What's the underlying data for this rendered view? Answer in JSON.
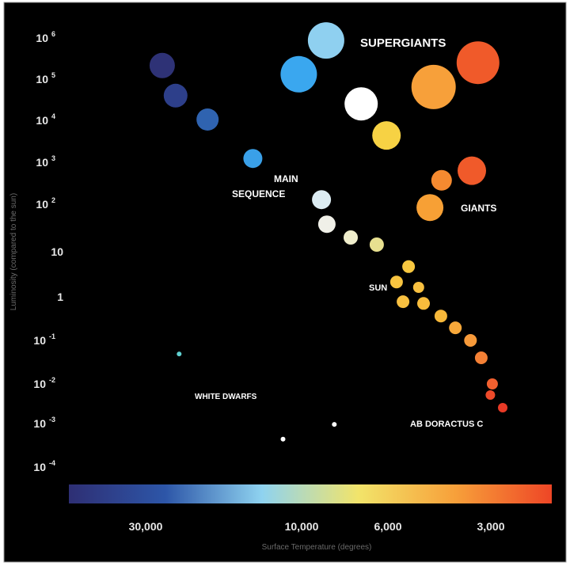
{
  "chart_data": {
    "type": "scatter",
    "title": "",
    "xlabel": "Surface Temperature (degrees)",
    "ylabel": "Luminosity (compared to the sun)",
    "x_scale": "log, reversed",
    "y_scale": "log",
    "x_ticks": [
      {
        "value": 30000,
        "label": "30,000"
      },
      {
        "value": 10000,
        "label": "10,000"
      },
      {
        "value": 6000,
        "label": "6,000"
      },
      {
        "value": 3000,
        "label": "3,000"
      }
    ],
    "y_ticks": [
      {
        "log": 6,
        "base": "10",
        "exp": "6"
      },
      {
        "log": 5,
        "base": "10",
        "exp": "5"
      },
      {
        "log": 4,
        "base": "10",
        "exp": "4"
      },
      {
        "log": 3,
        "base": "10",
        "exp": "3"
      },
      {
        "log": 2,
        "base": "10",
        "exp": "2"
      },
      {
        "log": 1,
        "base": "10",
        "exp": ""
      },
      {
        "log": 0,
        "base": "1",
        "exp": ""
      },
      {
        "log": -1,
        "base": "10",
        "exp": "-1"
      },
      {
        "log": -2,
        "base": "10",
        "exp": "-2"
      },
      {
        "log": -3,
        "base": "10",
        "exp": "-3"
      },
      {
        "log": -4,
        "base": "10",
        "exp": "-4"
      }
    ],
    "colorbar": [
      "#2e2f74",
      "#2d56a8",
      "#8fd3f0",
      "#f2e46a",
      "#f7a03a",
      "#ee4626"
    ],
    "annotations": {
      "supergiants": "SUPERGIANTS",
      "main_sequence_1": "MAIN",
      "main_sequence_2": "SEQUENCE",
      "giants": "GIANTS",
      "sun": "SUN",
      "white_dwarfs": "WHITE DWARFS",
      "ab_doradus": "AB DORACTUS C"
    },
    "stars": [
      {
        "temp": 26700,
        "logL": 5.33,
        "size": 8,
        "color": "#2e3276",
        "group": "main-sequence"
      },
      {
        "temp": 24300,
        "logL": 4.6,
        "size": 7.5,
        "color": "#2d3f8a",
        "group": "main-sequence"
      },
      {
        "temp": 19400,
        "logL": 4.02,
        "size": 7,
        "color": "#2f63b0",
        "group": "main-sequence"
      },
      {
        "temp": 14100,
        "logL": 3.09,
        "size": 6,
        "color": "#3aa0e8",
        "group": "main-sequence"
      },
      {
        "temp": 10200,
        "logL": 5.12,
        "size": 11.5,
        "color": "#3aa7ef",
        "group": "supergiant"
      },
      {
        "temp": 8650,
        "logL": 5.94,
        "size": 11.5,
        "color": "#8fd0f0",
        "group": "supergiant"
      },
      {
        "temp": 7030,
        "logL": 4.4,
        "size": 10.5,
        "color": "#ffffff",
        "group": "supergiant"
      },
      {
        "temp": 6050,
        "logL": 3.64,
        "size": 9,
        "color": "#f7d244",
        "group": "supergiant"
      },
      {
        "temp": 4410,
        "logL": 4.81,
        "size": 14,
        "color": "#f7a03a",
        "group": "supergiant"
      },
      {
        "temp": 3270,
        "logL": 5.4,
        "size": 13.5,
        "color": "#f05a2a",
        "group": "supergiant"
      },
      {
        "temp": 8890,
        "logL": 2.11,
        "size": 6,
        "color": "#dcecf2",
        "group": "main-sequence"
      },
      {
        "temp": 8610,
        "logL": 1.58,
        "size": 5.5,
        "color": "#f0f0e8",
        "group": "main-sequence"
      },
      {
        "temp": 7480,
        "logL": 1.3,
        "size": 4.5,
        "color": "#f0eecc",
        "group": "main-sequence"
      },
      {
        "temp": 6410,
        "logL": 1.15,
        "size": 4.5,
        "color": "#e8e090",
        "group": "main-sequence"
      },
      {
        "temp": 5220,
        "logL": 0.67,
        "size": 4,
        "color": "#f8c840",
        "group": "main-sequence"
      },
      {
        "temp": 5660,
        "logL": 0.33,
        "size": 4,
        "color": "#f8c440",
        "group": "sun"
      },
      {
        "temp": 4880,
        "logL": 0.21,
        "size": 3.5,
        "color": "#f8c040",
        "group": "main-sequence"
      },
      {
        "temp": 5420,
        "logL": -0.11,
        "size": 4,
        "color": "#f8c040",
        "group": "main-sequence"
      },
      {
        "temp": 4720,
        "logL": -0.15,
        "size": 4,
        "color": "#f8bc3c",
        "group": "main-sequence"
      },
      {
        "temp": 4200,
        "logL": -0.44,
        "size": 4,
        "color": "#f7b83a",
        "group": "main-sequence"
      },
      {
        "temp": 3810,
        "logL": -0.71,
        "size": 4,
        "color": "#f7a83a",
        "group": "main-sequence"
      },
      {
        "temp": 3440,
        "logL": -1.0,
        "size": 4,
        "color": "#f79a3a",
        "group": "main-sequence"
      },
      {
        "temp": 3200,
        "logL": -1.4,
        "size": 4,
        "color": "#f48035",
        "group": "main-sequence"
      },
      {
        "temp": 2970,
        "logL": -2.0,
        "size": 3.5,
        "color": "#f2602f",
        "group": "main-sequence"
      },
      {
        "temp": 3010,
        "logL": -2.28,
        "size": 3,
        "color": "#ee4a2a",
        "group": "main-sequence"
      },
      {
        "temp": 2770,
        "logL": -2.6,
        "size": 3,
        "color": "#e83a26",
        "group": "ab-doradus-c"
      },
      {
        "temp": 4180,
        "logL": 2.57,
        "size": 6.5,
        "color": "#f58a30",
        "group": "giant"
      },
      {
        "temp": 3410,
        "logL": 2.8,
        "size": 9,
        "color": "#f05a2a",
        "group": "giant"
      },
      {
        "temp": 4520,
        "logL": 1.93,
        "size": 8.5,
        "color": "#f7a035",
        "group": "giant"
      },
      {
        "temp": 23700,
        "logL": -1.31,
        "size": 1.5,
        "color": "#60d0d0",
        "group": "white-dwarf"
      },
      {
        "temp": 11400,
        "logL": -3.36,
        "size": 1.5,
        "color": "#ffffff",
        "group": "white-dwarf"
      },
      {
        "temp": 8240,
        "logL": -3.02,
        "size": 1.5,
        "color": "#ffffff",
        "group": "white-dwarf"
      }
    ]
  }
}
